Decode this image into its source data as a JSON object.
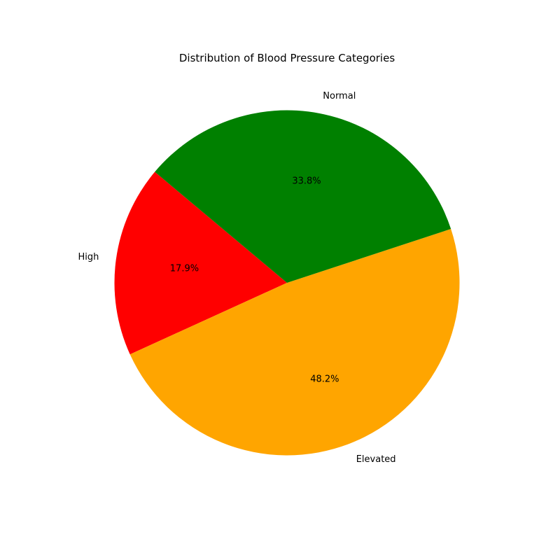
{
  "chart_data": {
    "type": "pie",
    "title": "Distribution of Blood Pressure Categories",
    "start_angle_deg": 140,
    "direction": "counterclockwise",
    "slices": [
      {
        "label": "High",
        "value": 17.9,
        "pct_label": "17.9%",
        "color": "#ff0000"
      },
      {
        "label": "Elevated",
        "value": 48.2,
        "pct_label": "48.2%",
        "color": "#ffa500"
      },
      {
        "label": "Normal",
        "value": 33.8,
        "pct_label": "33.8%",
        "color": "#008000"
      }
    ]
  }
}
